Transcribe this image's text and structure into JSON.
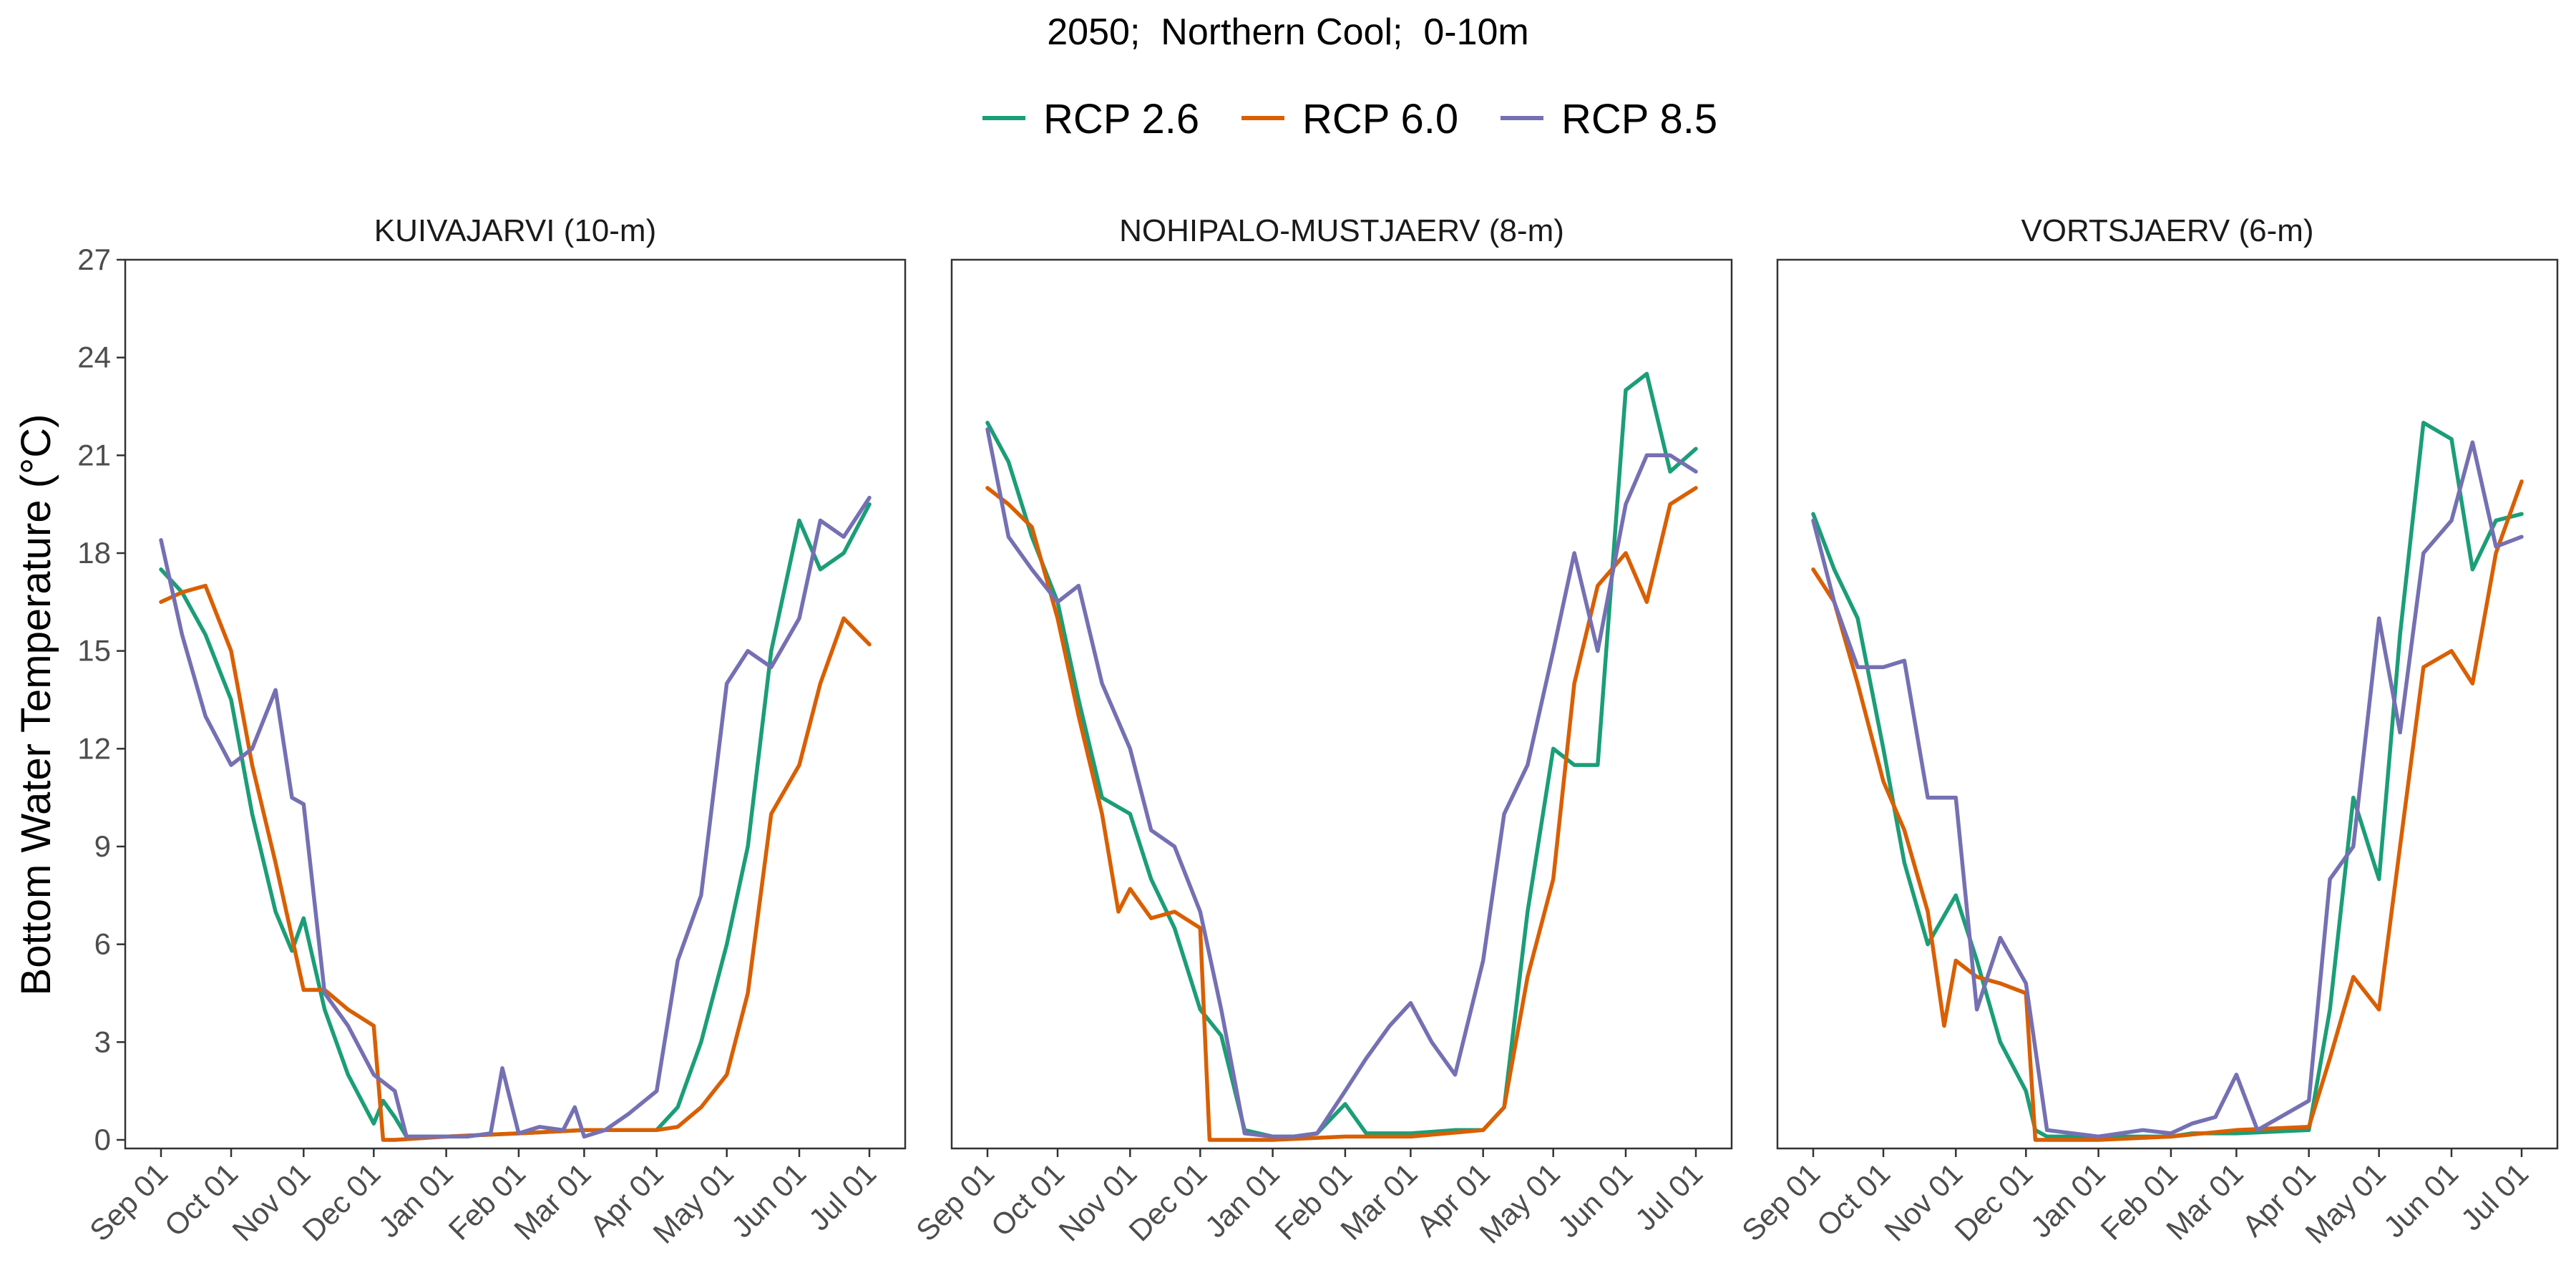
{
  "chart_data": {
    "type": "line",
    "title": "2050;  Northern Cool;  0-10m",
    "ylabel": "Bottom Water Temperature (°C)",
    "xlabel": "",
    "ylim": [
      0,
      27
    ],
    "yticks": [
      0,
      3,
      6,
      9,
      12,
      15,
      18,
      21,
      24,
      27
    ],
    "xlim": [
      "Sep 01",
      "Jul 01"
    ],
    "xticks": [
      "Sep 01",
      "Oct 01",
      "Nov 01",
      "Dec 01",
      "Jan 01",
      "Feb 01",
      "Mar 01",
      "Apr 01",
      "May 01",
      "Jun 01",
      "Jul 01"
    ],
    "legend_position": "top",
    "grid": false,
    "series_info": [
      {
        "name": "RCP 2.6",
        "color": "#1b9e77"
      },
      {
        "name": "RCP 6.0",
        "color": "#d95f02"
      },
      {
        "name": "RCP 8.5",
        "color": "#7570b3"
      }
    ],
    "panels": [
      {
        "title": "KUIVAJARVI (10-m)",
        "series": [
          {
            "name": "RCP 2.6",
            "x": [
              "Sep 01",
              "Sep 10",
              "Sep 20",
              "Oct 01",
              "Oct 10",
              "Oct 20",
              "Oct 27",
              "Nov 01",
              "Nov 10",
              "Nov 20",
              "Dec 01",
              "Dec 05",
              "Dec 10",
              "Dec 15",
              "Jan 01",
              "Feb 01",
              "Mar 01",
              "Apr 01",
              "Apr 10",
              "Apr 20",
              "May 01",
              "May 10",
              "May 20",
              "Jun 01",
              "Jun 10",
              "Jun 20",
              "Jul 01"
            ],
            "values": [
              17.5,
              16.8,
              15.5,
              13.5,
              10.0,
              7.0,
              5.8,
              6.8,
              4.0,
              2.0,
              0.5,
              1.2,
              0.7,
              0.1,
              0.1,
              0.2,
              0.3,
              0.3,
              1.0,
              3.0,
              6.0,
              9.0,
              15.0,
              19.0,
              17.5,
              18.0,
              19.5
            ]
          },
          {
            "name": "RCP 6.0",
            "x": [
              "Sep 01",
              "Sep 10",
              "Sep 20",
              "Oct 01",
              "Oct 10",
              "Oct 20",
              "Nov 01",
              "Nov 10",
              "Nov 20",
              "Dec 01",
              "Dec 05",
              "Dec 10",
              "Jan 01",
              "Feb 01",
              "Mar 01",
              "Apr 01",
              "Apr 10",
              "Apr 20",
              "May 01",
              "May 10",
              "May 20",
              "Jun 01",
              "Jun 10",
              "Jun 20",
              "Jul 01"
            ],
            "values": [
              16.5,
              16.8,
              17.0,
              15.0,
              11.5,
              8.5,
              4.6,
              4.6,
              4.0,
              3.5,
              0.0,
              0.0,
              0.1,
              0.2,
              0.3,
              0.3,
              0.4,
              1.0,
              2.0,
              4.5,
              10.0,
              11.5,
              14.0,
              16.0,
              15.2
            ]
          },
          {
            "name": "RCP 8.5",
            "x": [
              "Sep 01",
              "Sep 10",
              "Sep 20",
              "Oct 01",
              "Oct 10",
              "Oct 20",
              "Oct 27",
              "Nov 01",
              "Nov 10",
              "Nov 20",
              "Dec 01",
              "Dec 10",
              "Dec 15",
              "Jan 01",
              "Jan 10",
              "Jan 20",
              "Jan 25",
              "Feb 01",
              "Feb 10",
              "Feb 20",
              "Feb 25",
              "Mar 01",
              "Mar 10",
              "Mar 20",
              "Apr 01",
              "Apr 10",
              "Apr 20",
              "May 01",
              "May 10",
              "May 20",
              "Jun 01",
              "Jun 10",
              "Jun 20",
              "Jul 01"
            ],
            "values": [
              18.4,
              15.5,
              13.0,
              11.5,
              12.0,
              13.8,
              10.5,
              10.3,
              4.5,
              3.5,
              2.0,
              1.5,
              0.1,
              0.1,
              0.1,
              0.2,
              2.2,
              0.2,
              0.4,
              0.3,
              1.0,
              0.1,
              0.3,
              0.8,
              1.5,
              5.5,
              7.5,
              14.0,
              15.0,
              14.5,
              16.0,
              19.0,
              18.5,
              19.7
            ]
          }
        ]
      },
      {
        "title": "NOHIPALO-MUSTJAERV (8-m)",
        "series": [
          {
            "name": "RCP 2.6",
            "x": [
              "Sep 01",
              "Sep 10",
              "Sep 20",
              "Oct 01",
              "Oct 10",
              "Oct 20",
              "Nov 01",
              "Nov 10",
              "Nov 20",
              "Dec 01",
              "Dec 10",
              "Dec 20",
              "Jan 01",
              "Jan 10",
              "Jan 20",
              "Feb 01",
              "Feb 10",
              "Feb 20",
              "Mar 01",
              "Mar 20",
              "Apr 01",
              "Apr 10",
              "Apr 20",
              "May 01",
              "May 10",
              "May 20",
              "Jun 01",
              "Jun 10",
              "Jun 20",
              "Jul 01"
            ],
            "values": [
              22.0,
              20.8,
              18.5,
              16.5,
              13.5,
              10.5,
              10.0,
              8.0,
              6.5,
              4.0,
              3.2,
              0.3,
              0.1,
              0.1,
              0.2,
              1.1,
              0.2,
              0.2,
              0.2,
              0.3,
              0.3,
              1.0,
              7.0,
              12.0,
              11.5,
              11.5,
              23.0,
              23.5,
              20.5,
              21.2
            ]
          },
          {
            "name": "RCP 6.0",
            "x": [
              "Sep 01",
              "Sep 10",
              "Sep 20",
              "Oct 01",
              "Oct 10",
              "Oct 20",
              "Oct 27",
              "Nov 01",
              "Nov 10",
              "Nov 20",
              "Dec 01",
              "Dec 05",
              "Dec 10",
              "Jan 01",
              "Feb 01",
              "Mar 01",
              "Apr 01",
              "Apr 10",
              "Apr 20",
              "May 01",
              "May 10",
              "May 20",
              "Jun 01",
              "Jun 10",
              "Jun 20",
              "Jul 01"
            ],
            "values": [
              20.0,
              19.5,
              18.8,
              16.0,
              13.0,
              10.0,
              7.0,
              7.7,
              6.8,
              7.0,
              6.5,
              0.0,
              0.0,
              0.0,
              0.1,
              0.1,
              0.3,
              1.0,
              5.0,
              8.0,
              14.0,
              17.0,
              18.0,
              16.5,
              19.5,
              20.0
            ]
          },
          {
            "name": "RCP 8.5",
            "x": [
              "Sep 01",
              "Sep 10",
              "Sep 20",
              "Oct 01",
              "Oct 10",
              "Oct 20",
              "Nov 01",
              "Nov 10",
              "Nov 20",
              "Dec 01",
              "Dec 10",
              "Dec 20",
              "Jan 01",
              "Jan 10",
              "Jan 20",
              "Feb 01",
              "Feb 10",
              "Feb 20",
              "Mar 01",
              "Mar 10",
              "Mar 20",
              "Apr 01",
              "Apr 10",
              "Apr 20",
              "May 01",
              "May 10",
              "May 20",
              "Jun 01",
              "Jun 10",
              "Jun 20",
              "Jul 01"
            ],
            "values": [
              21.8,
              18.5,
              17.5,
              16.5,
              17.0,
              14.0,
              12.0,
              9.5,
              9.0,
              7.0,
              4.0,
              0.2,
              0.1,
              0.1,
              0.2,
              1.5,
              2.5,
              3.5,
              4.2,
              3.0,
              2.0,
              5.5,
              10.0,
              11.5,
              15.0,
              18.0,
              15.0,
              19.5,
              21.0,
              21.0,
              20.5
            ]
          }
        ]
      },
      {
        "title": "VORTSJAERV (6-m)",
        "series": [
          {
            "name": "RCP 2.6",
            "x": [
              "Sep 01",
              "Sep 10",
              "Sep 20",
              "Oct 01",
              "Oct 10",
              "Oct 20",
              "Nov 01",
              "Nov 10",
              "Nov 20",
              "Dec 01",
              "Dec 05",
              "Dec 10",
              "Jan 01",
              "Feb 01",
              "Feb 10",
              "Mar 01",
              "Apr 01",
              "Apr 10",
              "Apr 20",
              "May 01",
              "May 10",
              "May 20",
              "Jun 01",
              "Jun 10",
              "Jun 20",
              "Jul 01"
            ],
            "values": [
              19.2,
              17.5,
              16.0,
              12.0,
              8.5,
              6.0,
              7.5,
              5.5,
              3.0,
              1.5,
              0.3,
              0.1,
              0.1,
              0.1,
              0.2,
              0.2,
              0.3,
              4.0,
              10.5,
              8.0,
              15.5,
              22.0,
              21.5,
              17.5,
              19.0,
              19.2
            ]
          },
          {
            "name": "RCP 6.0",
            "x": [
              "Sep 01",
              "Sep 10",
              "Sep 20",
              "Oct 01",
              "Oct 10",
              "Oct 20",
              "Oct 27",
              "Nov 01",
              "Nov 10",
              "Nov 20",
              "Dec 01",
              "Dec 05",
              "Dec 10",
              "Jan 01",
              "Feb 01",
              "Mar 01",
              "Apr 01",
              "Apr 10",
              "Apr 20",
              "May 01",
              "May 10",
              "May 20",
              "Jun 01",
              "Jun 10",
              "Jun 20",
              "Jul 01"
            ],
            "values": [
              17.5,
              16.5,
              14.0,
              11.0,
              9.5,
              7.0,
              3.5,
              5.5,
              5.0,
              4.8,
              4.5,
              0.0,
              0.0,
              0.0,
              0.1,
              0.3,
              0.4,
              2.5,
              5.0,
              4.0,
              9.0,
              14.5,
              15.0,
              14.0,
              18.0,
              20.2
            ]
          },
          {
            "name": "RCP 8.5",
            "x": [
              "Sep 01",
              "Sep 10",
              "Sep 20",
              "Oct 01",
              "Oct 10",
              "Oct 20",
              "Nov 01",
              "Nov 10",
              "Nov 20",
              "Dec 01",
              "Dec 10",
              "Jan 01",
              "Jan 20",
              "Feb 01",
              "Feb 10",
              "Feb 20",
              "Mar 01",
              "Mar 10",
              "Apr 01",
              "Apr 10",
              "Apr 20",
              "May 01",
              "May 10",
              "May 20",
              "Jun 01",
              "Jun 10",
              "Jun 20",
              "Jul 01"
            ],
            "values": [
              19.0,
              16.5,
              14.5,
              14.5,
              14.7,
              10.5,
              10.5,
              4.0,
              6.2,
              4.8,
              0.3,
              0.1,
              0.3,
              0.2,
              0.5,
              0.7,
              2.0,
              0.3,
              1.2,
              8.0,
              9.0,
              16.0,
              12.5,
              18.0,
              19.0,
              21.4,
              18.2,
              18.5
            ]
          }
        ]
      }
    ]
  }
}
